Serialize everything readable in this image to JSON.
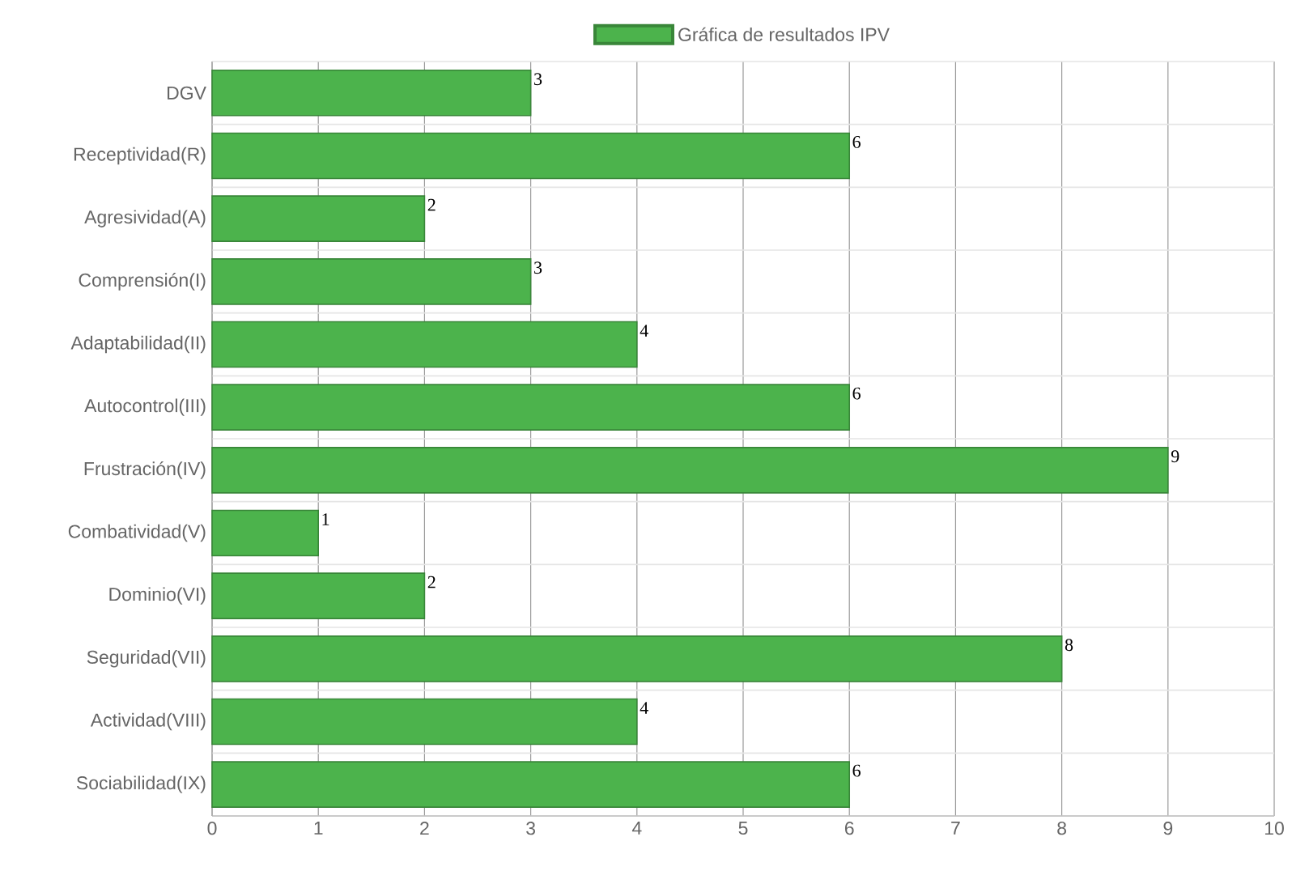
{
  "chart_data": {
    "type": "bar",
    "orientation": "horizontal",
    "categories": [
      "DGV",
      "Receptividad(R)",
      "Agresividad(A)",
      "Comprensión(I)",
      "Adaptabilidad(II)",
      "Autocontrol(III)",
      "Frustración(IV)",
      "Combatividad(V)",
      "Dominio(VI)",
      "Seguridad(VII)",
      "Actividad(VIII)",
      "Sociabilidad(IX)"
    ],
    "series": [
      {
        "name": "Gráfica de resultados IPV",
        "color": "#4cb34c",
        "values": [
          3,
          6,
          2,
          3,
          4,
          6,
          9,
          1,
          2,
          8,
          4,
          6
        ]
      }
    ],
    "xlim": [
      0,
      10
    ],
    "xticks": [
      0,
      1,
      2,
      3,
      4,
      5,
      6,
      7,
      8,
      9,
      10
    ],
    "grid": true,
    "legend": "top",
    "data_labels": true
  }
}
